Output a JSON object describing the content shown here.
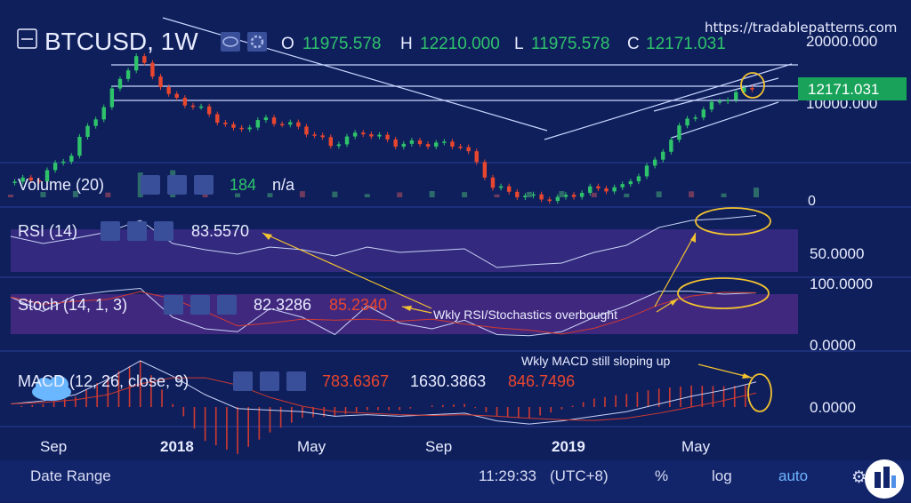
{
  "watermark": "https://tradablepatterns.com",
  "colors": {
    "up": "#2ec36b",
    "down": "#e8462e",
    "bg": "#0f1f5c",
    "line": "#9fb2e0",
    "text": "#e8ecff",
    "annot": "#f2c230",
    "bandRSI": "#3a2b84",
    "bandStoch": "#4a2a85"
  },
  "main": {
    "symbol": "BTCUSD, 1W",
    "o_label": "O",
    "o": "11975.578",
    "h_label": "H",
    "h": "12210.000",
    "l_label": "L",
    "l": "11975.578",
    "c_label": "C",
    "c": "12171.031",
    "y_ticks": [
      "20000.000",
      "10000.000"
    ],
    "last_price": "12171.031"
  },
  "volume": {
    "title": "Volume (20)",
    "value": "184",
    "na": "n/a",
    "axis_zero": "0"
  },
  "rsi": {
    "title": "RSI (14)",
    "value": "83.5570",
    "ticks": [
      "50.0000"
    ]
  },
  "stoch": {
    "title": "Stoch (14, 1, 3)",
    "k": "82.3286",
    "d": "85.2340",
    "ticks": [
      "100.0000",
      "0.0000"
    ]
  },
  "macd": {
    "title": "MACD (12, 26, close, 9)",
    "v1": "783.6367",
    "v2": "1630.3863",
    "v3": "846.7496",
    "ticks": [
      "0.0000"
    ]
  },
  "annotations": {
    "overbought": "Wkly RSI/Stochastics overbought",
    "macd": "Wkly MACD still sloping up"
  },
  "x_axis": [
    "Sep",
    "2018",
    "May",
    "Sep",
    "2019",
    "May"
  ],
  "bottom": {
    "date_range": "Date Range",
    "time": "11:29:33",
    "tz": "(UTC+8)",
    "pct": "%",
    "log": "log",
    "auto": "auto"
  },
  "chart_data": {
    "type": "line",
    "title": "BTCUSD, 1W",
    "ylabel": "",
    "y_log": true,
    "ylim": [
      2800,
      22000
    ],
    "x": [
      "2017-08",
      "2017-09",
      "2017-10",
      "2017-11",
      "2017-12",
      "2018-01",
      "2018-02",
      "2018-03",
      "2018-04",
      "2018-05",
      "2018-06",
      "2018-07",
      "2018-08",
      "2018-09",
      "2018-10",
      "2018-11",
      "2018-12",
      "2019-01",
      "2019-02",
      "2019-03",
      "2019-04",
      "2019-05",
      "2019-06",
      "2019-07"
    ],
    "series": [
      {
        "name": "BTCUSD",
        "values": [
          4200,
          4400,
          5800,
          9800,
          17000,
          11000,
          9500,
          7500,
          8500,
          7800,
          6400,
          7400,
          6500,
          6500,
          6400,
          4000,
          3600,
          3500,
          3900,
          4000,
          5300,
          8500,
          10500,
          12171
        ]
      }
    ],
    "rsi": [
      60,
      52,
      58,
      65,
      78,
      52,
      45,
      40,
      48,
      45,
      38,
      48,
      42,
      44,
      46,
      25,
      28,
      30,
      42,
      50,
      70,
      78,
      80,
      83.557
    ],
    "stoch": [
      75,
      50,
      78,
      85,
      90,
      40,
      20,
      15,
      55,
      40,
      10,
      60,
      30,
      20,
      35,
      10,
      8,
      15,
      40,
      60,
      85,
      85,
      80,
      82.33
    ],
    "macd": [
      200,
      400,
      800,
      1800,
      3000,
      2000,
      800,
      -100,
      -200,
      -300,
      -600,
      -500,
      -600,
      -500,
      -400,
      -900,
      -1100,
      -900,
      -600,
      -300,
      200,
      700,
      1100,
      1630.39
    ]
  }
}
